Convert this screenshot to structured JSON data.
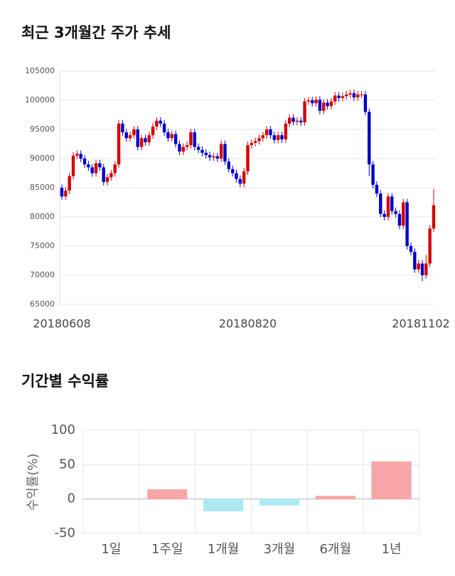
{
  "chart_data": [
    {
      "type": "candlestick",
      "title": "최근 3개월간 주가 추세",
      "categories": [
        "20180608",
        null,
        null,
        null,
        null,
        null,
        null,
        null,
        null,
        null,
        null,
        null,
        null,
        null,
        null,
        null,
        null,
        null,
        null,
        null,
        null,
        null,
        null,
        null,
        null,
        null,
        null,
        null,
        null,
        null,
        null,
        null,
        null,
        null,
        null,
        null,
        null,
        null,
        null,
        null,
        null,
        null,
        null,
        null,
        null,
        null,
        null,
        null,
        null,
        "20180820",
        null,
        null,
        null,
        null,
        null,
        null,
        null,
        null,
        null,
        null,
        null,
        null,
        null,
        null,
        null,
        null,
        null,
        null,
        null,
        null,
        null,
        null,
        null,
        null,
        null,
        null,
        null,
        null,
        null,
        null,
        null,
        null,
        null,
        null,
        null,
        null,
        null,
        null,
        null,
        null,
        null,
        null,
        null,
        null,
        null,
        null,
        null,
        null,
        "20181102"
      ],
      "open": [
        85000,
        83500,
        84500,
        87000,
        90500,
        90800,
        90000,
        89000,
        88500,
        87500,
        89200,
        88500,
        86000,
        86800,
        87500,
        89000,
        96000,
        94500,
        93500,
        94000,
        95000,
        92000,
        93500,
        92800,
        94000,
        95500,
        96500,
        96000,
        94500,
        93500,
        94200,
        92500,
        91200,
        92000,
        92300,
        94500,
        92000,
        91500,
        91000,
        90600,
        90200,
        90400,
        90000,
        92500,
        89500,
        88200,
        87500,
        86500,
        85700,
        87800,
        92300,
        92700,
        93000,
        93500,
        94000,
        95000,
        94000,
        93200,
        94000,
        93300,
        96000,
        97000,
        96300,
        96500,
        96200,
        99800,
        100000,
        99500,
        100100,
        98200,
        99600,
        99000,
        99800,
        100800,
        100400,
        100700,
        101000,
        101200,
        100500,
        101000,
        101000,
        98000,
        89000,
        85500,
        84000,
        80500,
        80000,
        83500,
        81000,
        80500,
        78500,
        82500,
        75000,
        74000,
        71000,
        72000,
        70000,
        72000,
        78000
      ],
      "high": [
        85600,
        85100,
        87600,
        91100,
        91400,
        91400,
        90600,
        89600,
        89100,
        89800,
        89800,
        89100,
        87400,
        88100,
        89600,
        96600,
        96600,
        95100,
        94600,
        95600,
        95600,
        94100,
        94100,
        94600,
        96100,
        97100,
        97100,
        96600,
        95100,
        94800,
        94800,
        93100,
        92600,
        92900,
        95100,
        95100,
        92600,
        92100,
        91600,
        91200,
        91000,
        91000,
        93100,
        93100,
        90100,
        88800,
        88100,
        87100,
        88400,
        92900,
        93300,
        93600,
        94100,
        94600,
        95600,
        95600,
        94600,
        94600,
        94600,
        96600,
        97600,
        97600,
        97100,
        97100,
        100400,
        100600,
        100600,
        100700,
        100700,
        100200,
        100200,
        100400,
        101400,
        101400,
        101300,
        101600,
        101800,
        101800,
        101600,
        101600,
        101600,
        98600,
        89600,
        86100,
        84600,
        81100,
        84100,
        84100,
        81600,
        81100,
        83100,
        83100,
        75600,
        74600,
        72600,
        72600,
        73500,
        78600,
        84800
      ],
      "low": [
        82900,
        82900,
        83900,
        86400,
        89900,
        89400,
        88400,
        87900,
        86900,
        86900,
        87900,
        85400,
        85400,
        86200,
        86900,
        88400,
        93900,
        92900,
        92900,
        93400,
        91400,
        91400,
        92200,
        92200,
        93400,
        94900,
        95400,
        93900,
        92900,
        92900,
        91900,
        90600,
        90600,
        91400,
        91700,
        91400,
        90900,
        90400,
        90000,
        89600,
        89600,
        89400,
        89400,
        88900,
        87600,
        86900,
        85900,
        85100,
        85100,
        87200,
        91700,
        92100,
        92400,
        92900,
        93400,
        93400,
        92600,
        92600,
        92700,
        92700,
        95400,
        95700,
        95700,
        95600,
        95600,
        99200,
        98900,
        98900,
        97600,
        97600,
        98400,
        98400,
        99200,
        99800,
        99800,
        100100,
        100400,
        99900,
        99900,
        100400,
        97400,
        87000,
        84900,
        83400,
        79900,
        79400,
        79400,
        80400,
        79900,
        77900,
        77900,
        74400,
        73400,
        70400,
        70400,
        69000,
        69400,
        71400,
        77400
      ],
      "close": [
        83500,
        84500,
        87000,
        90500,
        90800,
        90000,
        89000,
        88500,
        87500,
        89200,
        88500,
        86000,
        86800,
        87500,
        89000,
        96000,
        94500,
        93500,
        94000,
        95000,
        92000,
        93500,
        92800,
        94000,
        95500,
        96500,
        96000,
        94500,
        93500,
        94200,
        92500,
        91200,
        92000,
        92300,
        94500,
        92000,
        91500,
        91000,
        90600,
        90200,
        90400,
        90000,
        92500,
        89500,
        88200,
        87500,
        86500,
        85700,
        87800,
        92300,
        92700,
        93000,
        93500,
        94000,
        95000,
        94000,
        93200,
        94000,
        93300,
        96000,
        97000,
        96300,
        96500,
        96200,
        99800,
        100000,
        99500,
        100100,
        98200,
        99600,
        99000,
        99800,
        100800,
        100400,
        100700,
        101000,
        101200,
        100500,
        101000,
        101000,
        98000,
        89000,
        85500,
        84000,
        80500,
        80000,
        83500,
        81000,
        80500,
        78500,
        82500,
        75000,
        74000,
        71000,
        72000,
        70000,
        72000,
        78000,
        82000
      ],
      "up_color": "#d40000",
      "down_color": "#0000c8",
      "ylim": [
        65000,
        105000
      ],
      "yticks": [
        65000,
        70000,
        75000,
        80000,
        85000,
        90000,
        95000,
        100000,
        105000
      ],
      "grid": true
    },
    {
      "type": "bar",
      "title": "기간별 수익률",
      "ylabel": "수익률(%)",
      "categories": [
        "1일",
        "1주일",
        "1개월",
        "3개월",
        "6개월",
        "1년"
      ],
      "values": [
        0,
        13.5,
        -17.5,
        -9,
        4,
        54
      ],
      "colors": [
        "#f7a6a6",
        "#f7a6a6",
        "#aee9f3",
        "#aee9f3",
        "#f7a6a6",
        "#f7a6a6"
      ],
      "ylim": [
        -50,
        100
      ],
      "yticks": [
        -50,
        0,
        50,
        100
      ],
      "grid": true
    }
  ]
}
